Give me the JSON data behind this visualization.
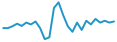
{
  "x": [
    0,
    1,
    2,
    3,
    4,
    5,
    6,
    7,
    8,
    9,
    10,
    11,
    12,
    13,
    14,
    15,
    16,
    17,
    18,
    19,
    20,
    21,
    22,
    23,
    24
  ],
  "y": [
    4,
    4,
    4.5,
    5.2,
    4.6,
    5.5,
    5.0,
    5.8,
    4.0,
    1.0,
    1.5,
    9.5,
    11.0,
    7.5,
    4.5,
    3.0,
    5.5,
    3.5,
    6.0,
    5.0,
    6.5,
    5.5,
    6.0,
    5.5,
    5.8
  ],
  "line_color": "#2196c8",
  "line_width": 1.4,
  "background_color": "#ffffff"
}
